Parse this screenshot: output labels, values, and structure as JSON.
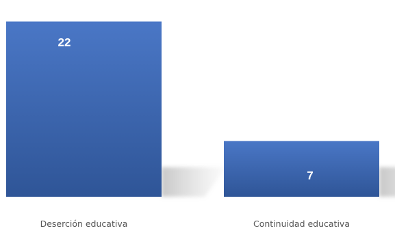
{
  "chart_data": {
    "type": "bar",
    "categories": [
      "Deserción educativa",
      "Continuidad educativa"
    ],
    "values": [
      22,
      7
    ],
    "title": "",
    "xlabel": "",
    "ylabel": "",
    "ylim": [
      0,
      23.5
    ],
    "grid": false,
    "legend": "none",
    "colors": {
      "bar_top": "#4a77c6",
      "bar_bottom": "#2f5597",
      "label": "#ffffff",
      "axis_text": "#555555"
    }
  }
}
